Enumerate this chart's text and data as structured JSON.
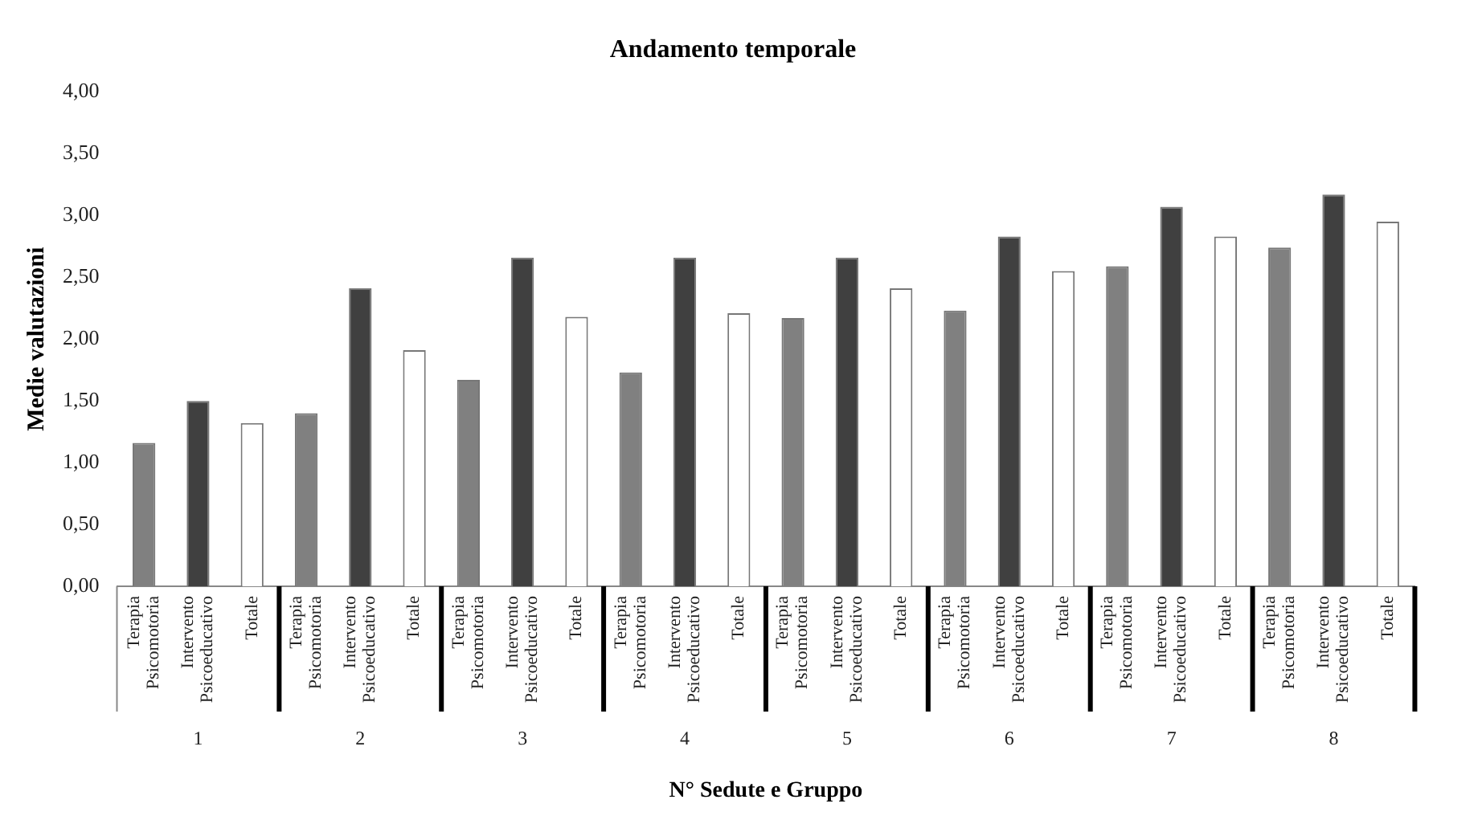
{
  "chart_data": {
    "type": "bar",
    "title": "Andamento temporale",
    "xlabel": "N° Sedute e Gruppo",
    "ylabel": "Medie valutazioni",
    "categories": [
      "1",
      "2",
      "3",
      "4",
      "5",
      "6",
      "7",
      "8"
    ],
    "series": [
      {
        "name": "Terapia Psicomotoria",
        "color": "#808080",
        "values": [
          1.16,
          1.4,
          1.67,
          1.73,
          2.17,
          2.23,
          2.59,
          2.74
        ]
      },
      {
        "name": "Intervento Psicoeducativo",
        "color": "#404040",
        "values": [
          1.5,
          2.41,
          2.66,
          2.66,
          2.66,
          2.83,
          3.07,
          3.17
        ]
      },
      {
        "name": "Totale",
        "color": "#ffffff",
        "values": [
          1.32,
          1.91,
          2.18,
          2.21,
          2.41,
          2.55,
          2.83,
          2.95
        ]
      }
    ],
    "ylim": [
      0,
      4
    ],
    "yticks": [
      {
        "value": 0,
        "label": "0,00"
      },
      {
        "value": 0.5,
        "label": "0,50"
      },
      {
        "value": 1,
        "label": "1,00"
      },
      {
        "value": 1.5,
        "label": "1,50"
      },
      {
        "value": 2,
        "label": "2,00"
      },
      {
        "value": 2.5,
        "label": "2,50"
      },
      {
        "value": 3,
        "label": "3,00"
      },
      {
        "value": 3.5,
        "label": "3,50"
      },
      {
        "value": 4,
        "label": "4,00"
      }
    ],
    "legend": false
  }
}
